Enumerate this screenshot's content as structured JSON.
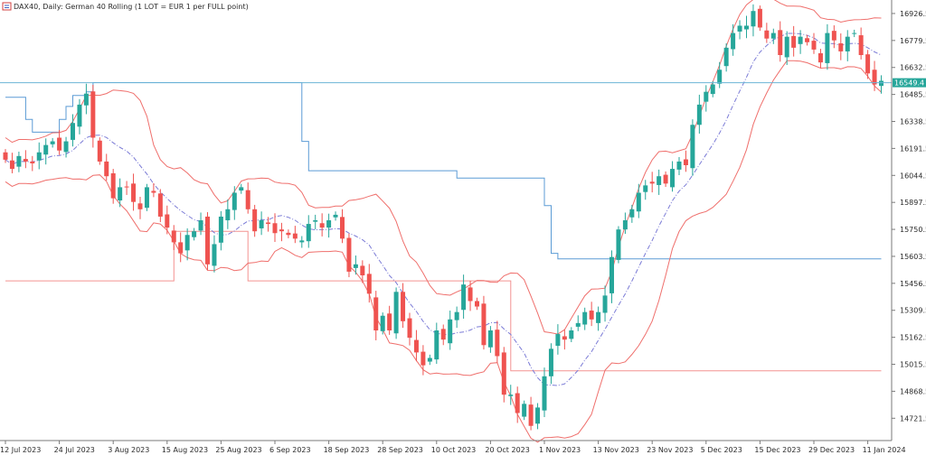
{
  "header": {
    "title": "DAX40, Daily:  German 40 Rolling (1 LOT = EUR  1 per FULL point)"
  },
  "colors": {
    "bull": "#26a69a",
    "bear": "#ef5350",
    "channel": "#5b9bd5",
    "envelope": "#ef6f6c",
    "mid": "#7b7bd6",
    "price_line": "#6bb5d6",
    "price_tag_bg": "#26a69a"
  },
  "chart_data": {
    "type": "candlestick",
    "symbol": "DAX40",
    "timeframe": "Daily",
    "ylim": [
      14600,
      17000
    ],
    "y_ticks": [
      "16926.5",
      "16779.5",
      "16632.5",
      "16485.5",
      "16338.5",
      "16191.5",
      "16044.5",
      "15897.5",
      "15750.5",
      "15603.5",
      "15456.5",
      "15309.5",
      "15162.5",
      "15015.5",
      "14868.5",
      "14721.5"
    ],
    "x_ticks": [
      {
        "label": "12 Jul 2023",
        "index": 0
      },
      {
        "label": "24 Jul 2023",
        "index": 8
      },
      {
        "label": "3 Aug 2023",
        "index": 16
      },
      {
        "label": "15 Aug 2023",
        "index": 24
      },
      {
        "label": "25 Aug 2023",
        "index": 32
      },
      {
        "label": "6 Sep 2023",
        "index": 40
      },
      {
        "label": "18 Sep 2023",
        "index": 48
      },
      {
        "label": "28 Sep 2023",
        "index": 56
      },
      {
        "label": "10 Oct 2023",
        "index": 64
      },
      {
        "label": "20 Oct 2023",
        "index": 72
      },
      {
        "label": "1 Nov 2023",
        "index": 80
      },
      {
        "label": "13 Nov 2023",
        "index": 88
      },
      {
        "label": "23 Nov 2023",
        "index": 96
      },
      {
        "label": "5 Dec 2023",
        "index": 104
      },
      {
        "label": "15 Dec 2023",
        "index": 112
      },
      {
        "label": "29 Dec 2023",
        "index": 120
      },
      {
        "label": "11 Jan 2024",
        "index": 128
      }
    ],
    "current_price": "16549.4",
    "current_price_value": 16549.4,
    "close": [
      16130,
      16080,
      16150,
      16120,
      16110,
      16170,
      16210,
      16230,
      16180,
      16230,
      16330,
      16430,
      16490,
      16250,
      16120,
      16040,
      15920,
      15980,
      15980,
      15900,
      15860,
      15980,
      15950,
      15820,
      15760,
      15680,
      15620,
      15720,
      15740,
      15800,
      15560,
      15670,
      15820,
      15860,
      15950,
      15980,
      15860,
      15740,
      15800,
      15780,
      15730,
      15740,
      15720,
      15700,
      15690,
      15780,
      15800,
      15760,
      15800,
      15830,
      15700,
      15520,
      15560,
      15500,
      15400,
      15200,
      15280,
      15200,
      15410,
      15250,
      15160,
      15080,
      15010,
      15050,
      15200,
      15150,
      15260,
      15300,
      15450,
      15360,
      15330,
      15120,
      15200,
      15060,
      14850,
      14850,
      14750,
      14800,
      14680,
      14780,
      14950,
      15100,
      15180,
      15150,
      15200,
      15240,
      15300,
      15260,
      15300,
      15390,
      15600,
      15750,
      15800,
      15860,
      15950,
      15990,
      16000,
      16040,
      16000,
      16080,
      16120,
      16100,
      16320,
      16430,
      16500,
      16540,
      16620,
      16740,
      16820,
      16860,
      16860,
      16940,
      16850,
      16790,
      16820,
      16700,
      16800,
      16740,
      16800,
      16770,
      16730,
      16660,
      16820,
      16780,
      16720,
      16800,
      16820,
      16700,
      16600,
      16540,
      16560
    ],
    "channel_upper": [
      16470,
      16470,
      16470,
      16350,
      16280,
      16280,
      16280,
      16280,
      16350,
      16420,
      16480,
      16480,
      16500,
      16550,
      16550,
      16550,
      16550,
      16550,
      16550,
      16550,
      16550,
      16550,
      16550,
      16550,
      16550,
      16550,
      16550,
      16550,
      16550,
      16550,
      16550,
      16550,
      16550,
      16550,
      16550,
      16550,
      16550,
      16550,
      16550,
      16550,
      16550,
      16550,
      16550,
      16550,
      16230,
      16070,
      16070,
      16070,
      16070,
      16070,
      16070,
      16070,
      16070,
      16070,
      16070,
      16070,
      16070,
      16070,
      16070,
      16070,
      16070,
      16070,
      16070,
      16070,
      16070,
      16070,
      16070,
      16030,
      16030,
      16030,
      16030,
      16030,
      16030,
      16030,
      16030,
      16030,
      16030,
      16030,
      16030,
      16030,
      15880,
      15620,
      15590,
      15590,
      15590,
      15590,
      15590,
      15590,
      15590,
      15590,
      15590,
      15590,
      15590,
      15590,
      15590,
      15590,
      15590,
      15590,
      15590,
      15590,
      15590,
      15590,
      15590,
      15590,
      15590,
      15590,
      15590,
      15590,
      15590,
      15590,
      15590,
      15590,
      15590,
      15590,
      15590,
      15590,
      15590,
      15590,
      15590,
      15590,
      15590,
      15590,
      15590,
      15590,
      15590,
      15590,
      15590,
      15590,
      15590,
      15590,
      15590
    ],
    "channel_lower": [
      15470,
      15470,
      15470,
      15470,
      15470,
      15470,
      15470,
      15470,
      15470,
      15470,
      15470,
      15470,
      15470,
      15470,
      15470,
      15470,
      15470,
      15470,
      15470,
      15470,
      15470,
      15470,
      15470,
      15470,
      15470,
      15740,
      15740,
      15740,
      15740,
      15740,
      15740,
      15740,
      15740,
      15740,
      15740,
      15740,
      15470,
      15470,
      15470,
      15470,
      15470,
      15470,
      15470,
      15470,
      15470,
      15470,
      15470,
      15470,
      15470,
      15470,
      15470,
      15470,
      15470,
      15470,
      15470,
      15470,
      15470,
      15470,
      15470,
      15470,
      15470,
      15470,
      15470,
      15470,
      15470,
      15470,
      15470,
      15470,
      15470,
      15470,
      15470,
      15470,
      15470,
      15470,
      15470,
      14980,
      14980,
      14980,
      14980,
      14980,
      14980,
      14980,
      14980,
      14980,
      14980,
      14980,
      14980,
      14980,
      14980,
      14980,
      14980,
      14980,
      14980,
      14980,
      14980,
      14980,
      14980,
      14980,
      14980,
      14980,
      14980,
      14980,
      14980,
      14980,
      14980,
      14980,
      14980,
      14980,
      14980,
      14980,
      14980,
      14980,
      14980,
      14980,
      14980,
      14980,
      14980,
      14980,
      14980,
      14980,
      14980,
      14980,
      14980,
      14980,
      14980,
      14980,
      14980,
      14980,
      14980,
      14980,
      14980
    ]
  }
}
